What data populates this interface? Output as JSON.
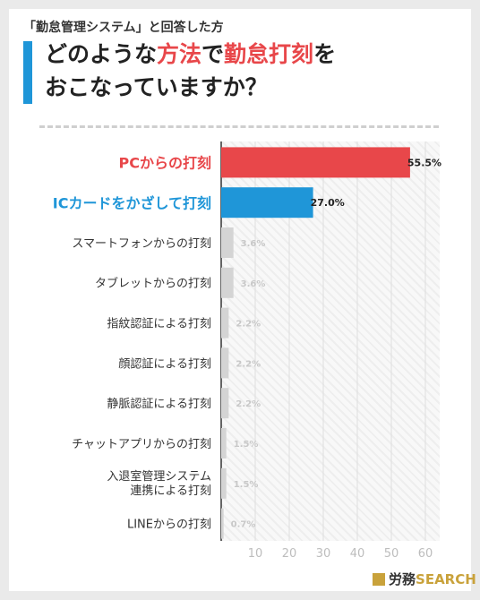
{
  "header": {
    "subtitle": "「勤怠管理システム」と回答した方",
    "title_line1": [
      "どのような",
      "方法",
      "で",
      "勤怠打刻",
      "を"
    ],
    "title_line2": "おこなっていますか？"
  },
  "logo": {
    "part1": "労務",
    "part2": "SEARCH"
  },
  "chart_data": {
    "type": "bar",
    "orientation": "horizontal",
    "categories": [
      "PCからの打刻",
      "ICカードをかざして打刻",
      "スマートフォンからの打刻",
      "タブレットからの打刻",
      "指紋認証による打刻",
      "顔認証による打刻",
      "静脈認証による打刻",
      "チャットアプリからの打刻",
      "入退室管理システム\n連携による打刻",
      "LINEからの打刻"
    ],
    "values": [
      55.5,
      27.0,
      3.6,
      3.6,
      2.2,
      2.2,
      2.2,
      1.5,
      1.5,
      0.7
    ],
    "value_labels": [
      "55.5%",
      "27.0%",
      "3.6%",
      "3.6%",
      "2.2%",
      "2.2%",
      "2.2%",
      "1.5%",
      "1.5%",
      "0.7%"
    ],
    "xlim": [
      0,
      60
    ],
    "xticks": [
      10,
      20,
      30,
      40,
      50,
      60
    ],
    "colors": {
      "first": "#e8474a",
      "second": "#1f96d8",
      "other": "#d4d4d4",
      "accent": "#1f96d8",
      "highlight": "#e8474a"
    },
    "grid": true
  }
}
